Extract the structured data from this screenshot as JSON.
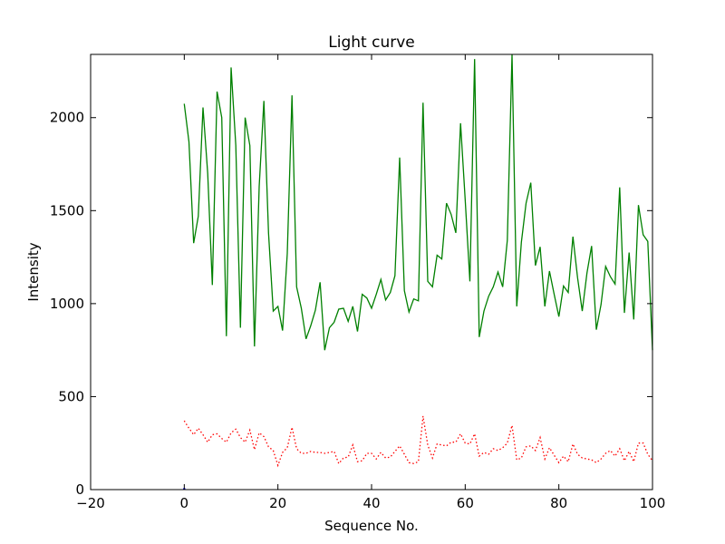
{
  "chart_data": {
    "type": "line",
    "title": "Light curve",
    "xlabel": "Sequence No.",
    "ylabel": "Intensity",
    "xlim": [
      -20,
      100
    ],
    "ylim": [
      0,
      2340
    ],
    "xticks": [
      -20,
      0,
      20,
      40,
      60,
      80,
      100
    ],
    "yticks": [
      0,
      500,
      1000,
      1500,
      2000
    ],
    "grid": false,
    "legend": "none",
    "series": [
      {
        "color": "#008000",
        "style": "solid",
        "x": [
          0,
          1,
          2,
          3,
          4,
          5,
          6,
          7,
          8,
          9,
          10,
          11,
          12,
          13,
          14,
          15,
          16,
          17,
          18,
          19,
          20,
          21,
          22,
          23,
          24,
          25,
          26,
          27,
          28,
          29,
          30,
          31,
          32,
          33,
          34,
          35,
          36,
          37,
          38,
          39,
          40,
          41,
          42,
          43,
          44,
          45,
          46,
          47,
          48,
          49,
          50,
          51,
          52,
          53,
          54,
          55,
          56,
          57,
          58,
          59,
          60,
          61,
          62,
          63,
          64,
          65,
          66,
          67,
          68,
          69,
          70,
          71,
          72,
          73,
          74,
          75,
          76,
          77,
          78,
          79,
          80,
          81,
          82,
          83,
          84,
          85,
          86,
          87,
          88,
          89,
          90,
          91,
          92,
          93,
          94,
          95,
          96,
          97,
          98,
          99,
          100
        ],
        "y": [
          2075,
          1870,
          1325,
          1470,
          2055,
          1700,
          1100,
          2140,
          2000,
          825,
          2270,
          1850,
          870,
          2000,
          1850,
          770,
          1630,
          2090,
          1380,
          960,
          985,
          855,
          1270,
          2120,
          1090,
          975,
          810,
          880,
          965,
          1115,
          750,
          870,
          900,
          970,
          975,
          905,
          985,
          850,
          1050,
          1030,
          975,
          1050,
          1130,
          1020,
          1060,
          1150,
          1785,
          1070,
          955,
          1025,
          1015,
          2080,
          1120,
          1090,
          1260,
          1240,
          1540,
          1480,
          1380,
          1970,
          1560,
          1120,
          2315,
          820,
          960,
          1040,
          1090,
          1170,
          1090,
          1340,
          2340,
          985,
          1330,
          1540,
          1650,
          1205,
          1305,
          985,
          1175,
          1050,
          930,
          1095,
          1060,
          1360,
          1140,
          960,
          1165,
          1310,
          860,
          995,
          1200,
          1145,
          1105,
          1625,
          950,
          1275,
          915,
          1530,
          1370,
          1335,
          750
        ]
      },
      {
        "color": "#ff0000",
        "style": "dotted",
        "x": [
          0,
          1,
          2,
          3,
          4,
          5,
          6,
          7,
          8,
          9,
          10,
          11,
          12,
          13,
          14,
          15,
          16,
          17,
          18,
          19,
          20,
          21,
          22,
          23,
          24,
          25,
          26,
          27,
          28,
          29,
          30,
          31,
          32,
          33,
          34,
          35,
          36,
          37,
          38,
          39,
          40,
          41,
          42,
          43,
          44,
          45,
          46,
          47,
          48,
          49,
          50,
          51,
          52,
          53,
          54,
          55,
          56,
          57,
          58,
          59,
          60,
          61,
          62,
          63,
          64,
          65,
          66,
          67,
          68,
          69,
          70,
          71,
          72,
          73,
          74,
          75,
          76,
          77,
          78,
          79,
          80,
          81,
          82,
          83,
          84,
          85,
          86,
          87,
          88,
          89,
          90,
          91,
          92,
          93,
          94,
          95,
          96,
          97,
          98,
          99,
          100
        ],
        "y": [
          370,
          330,
          295,
          330,
          295,
          255,
          295,
          300,
          275,
          255,
          305,
          325,
          280,
          255,
          320,
          215,
          305,
          285,
          230,
          210,
          130,
          200,
          225,
          335,
          220,
          195,
          195,
          205,
          200,
          200,
          195,
          200,
          205,
          140,
          170,
          175,
          240,
          150,
          155,
          195,
          195,
          165,
          200,
          170,
          175,
          205,
          235,
          190,
          145,
          140,
          150,
          395,
          240,
          170,
          245,
          240,
          235,
          255,
          255,
          300,
          250,
          245,
          300,
          180,
          200,
          190,
          220,
          210,
          225,
          250,
          345,
          160,
          170,
          230,
          235,
          210,
          280,
          165,
          225,
          185,
          145,
          180,
          150,
          245,
          190,
          170,
          165,
          160,
          145,
          165,
          195,
          210,
          180,
          220,
          155,
          205,
          150,
          250,
          250,
          190,
          155
        ]
      },
      {
        "color": "#0000ff",
        "style": "solid",
        "x": [
          0,
          0
        ],
        "y": [
          0,
          8
        ]
      }
    ]
  }
}
